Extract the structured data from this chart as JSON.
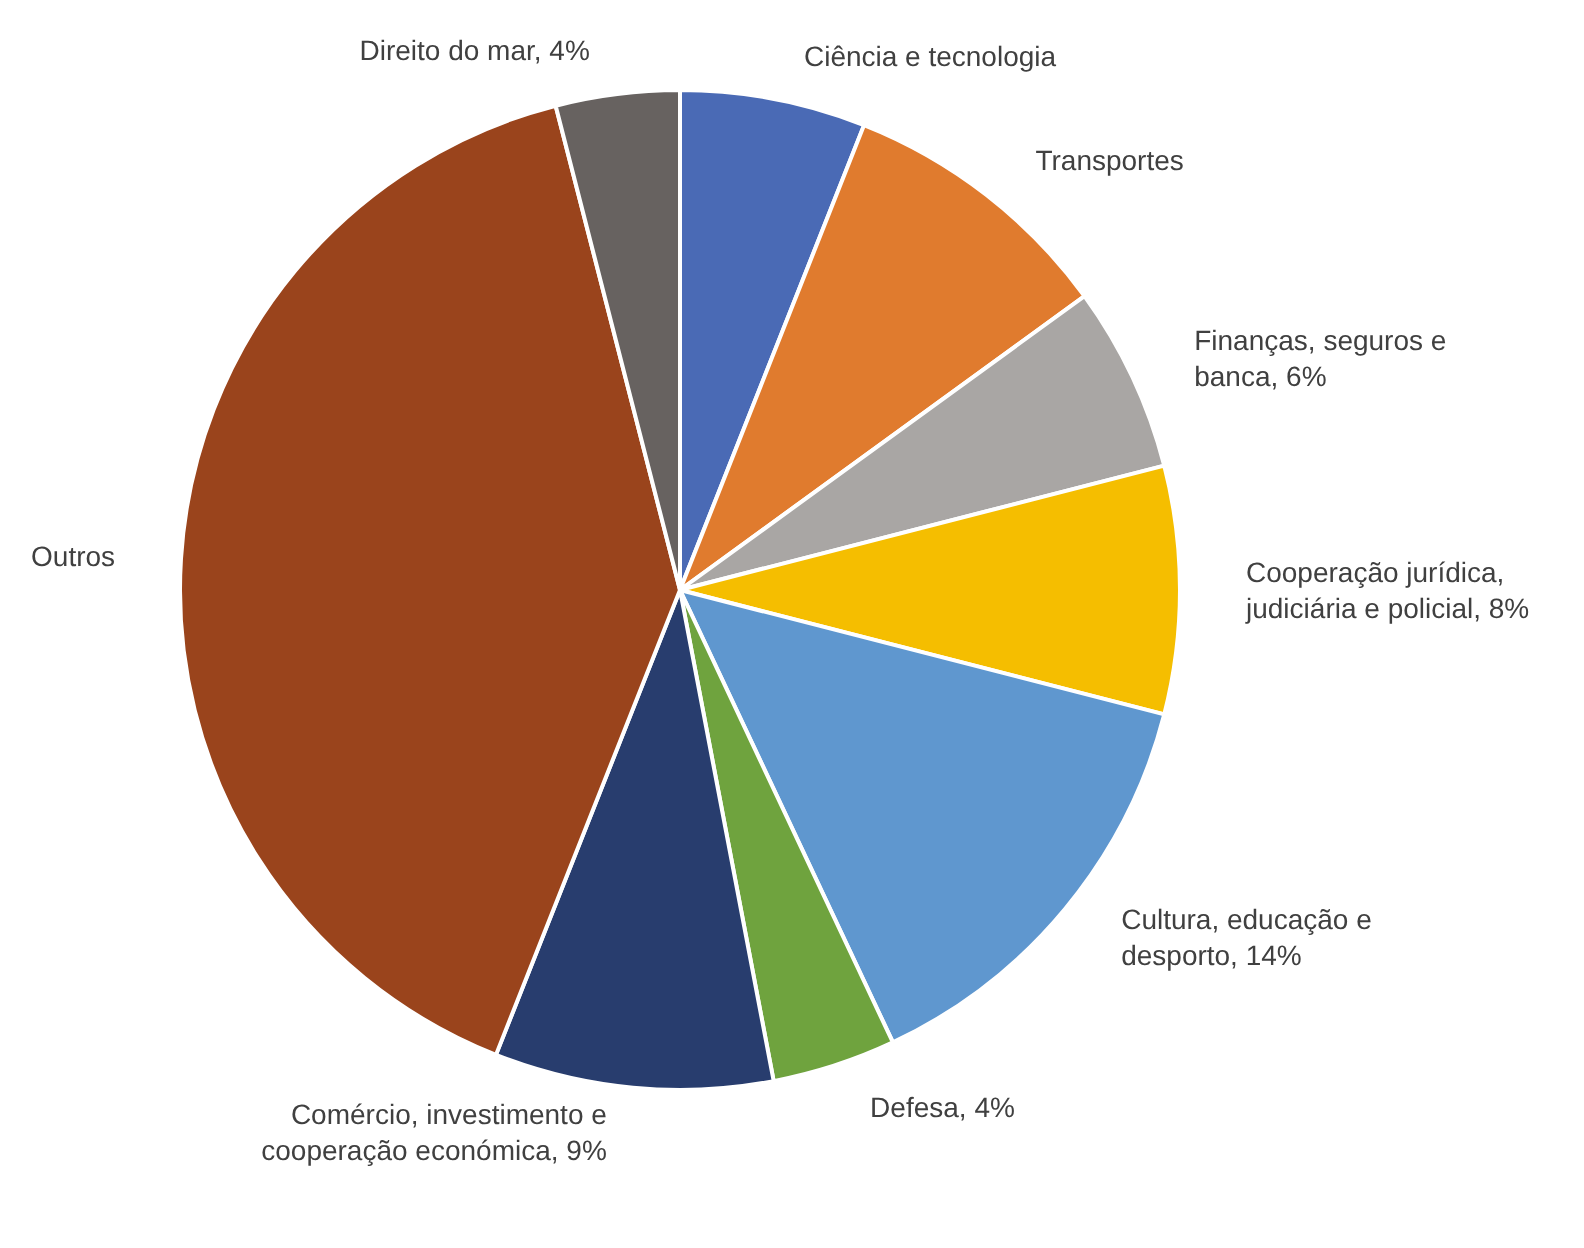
{
  "chart_data": {
    "type": "pie",
    "categories": [
      "Ciência e tecnologia",
      "Transportes",
      "Finanças, seguros e banca",
      "Cooperação jurídica, judiciária e policial",
      "Cultura, educação e desporto",
      "Defesa",
      "Comércio, investimento e cooperação económica",
      "Outros",
      "Direito do mar"
    ],
    "values": [
      6,
      9,
      6,
      8,
      14,
      4,
      9,
      40,
      4
    ],
    "value_labels": [
      null,
      null,
      "6%",
      "8%",
      "14%",
      "4%",
      "9%",
      null,
      "4%"
    ],
    "colors": [
      "#4a6ab5",
      "#e07b2e",
      "#a9a6a4",
      "#f5be00",
      "#5f97cf",
      "#6fa33e",
      "#283d6e",
      "#9a441c",
      "#676260"
    ]
  }
}
